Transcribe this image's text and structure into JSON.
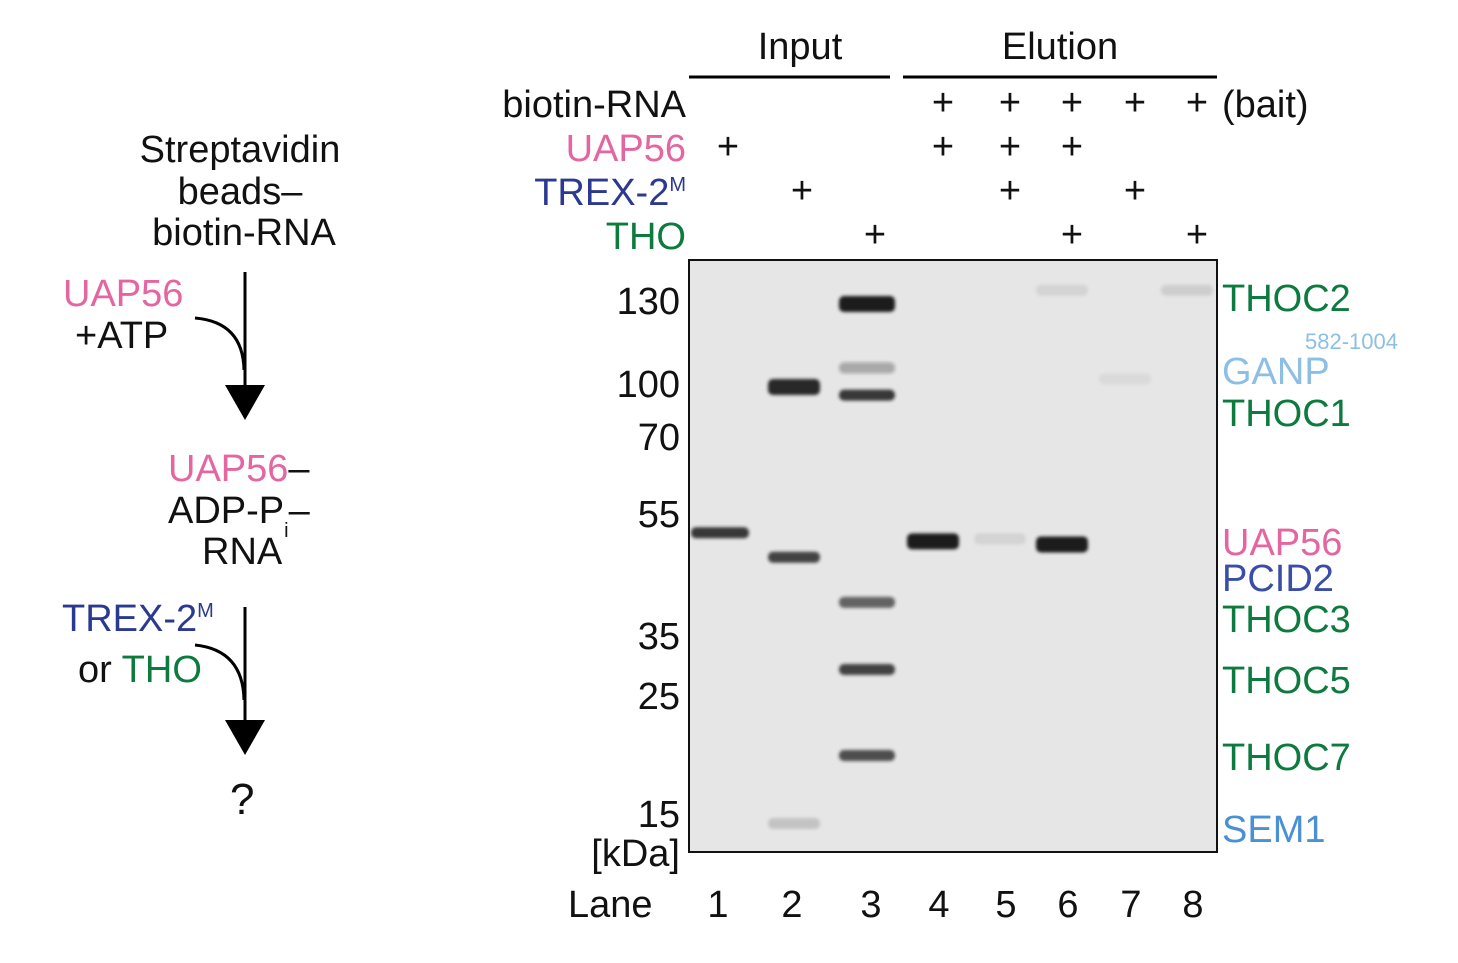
{
  "colors": {
    "uap56": "#e466a0",
    "trex2": "#2b3990",
    "tho": "#0d7a3e",
    "ganp": "#8dbfe6",
    "pcid2": "#3a4ea8",
    "sem1": "#4a90d4",
    "gel_bg": "#e6e6e6",
    "band": "#1a1a1a"
  },
  "scheme": {
    "start": [
      "Streptavidin",
      "beads–",
      "biotin-RNA"
    ],
    "step1_reagent": "UAP56",
    "step1_cofactor": "+ATP",
    "intermediate": {
      "line1_protein": "UAP56",
      "line1_dash": "–",
      "line2": "ADP-P",
      "line2_sub": "i",
      "line2_dash": "–",
      "line3": "RNA"
    },
    "step2_reagent": "TREX-2",
    "step2_sup": "M",
    "step2_or": "or ",
    "step2_alt": "THO",
    "result": "?",
    "icons": [
      "arrow-down-icon",
      "curved-arrow-icon"
    ]
  },
  "header": {
    "input_label": "Input",
    "elution_label": "Elution",
    "bait_note": "(bait)"
  },
  "rows": [
    {
      "label": "biotin-RNA",
      "sup": "",
      "color_key": "",
      "lanes": [
        "",
        "",
        "",
        "+",
        "+",
        "+",
        "+",
        "+"
      ]
    },
    {
      "label": "UAP56",
      "sup": "",
      "color_key": "uap56",
      "lanes": [
        "+",
        "",
        "",
        "+",
        "+",
        "+",
        "",
        ""
      ]
    },
    {
      "label": "TREX-2",
      "sup": "M",
      "color_key": "trex2",
      "lanes": [
        "",
        "+",
        "",
        "",
        "+",
        "",
        "+",
        ""
      ]
    },
    {
      "label": "THO",
      "sup": "",
      "color_key": "tho",
      "lanes": [
        "",
        "",
        "+",
        "",
        "",
        "+",
        "",
        "+"
      ]
    }
  ],
  "markers": {
    "values": [
      "130",
      "100",
      "70",
      "55",
      "35",
      "25",
      "15"
    ],
    "unit": "[kDa]"
  },
  "lanes": {
    "label": "Lane",
    "numbers": [
      "1",
      "2",
      "3",
      "4",
      "5",
      "6",
      "7",
      "8"
    ]
  },
  "proteins": [
    {
      "name": "THOC2",
      "sup": "",
      "color_key": "tho"
    },
    {
      "name": "GANP",
      "sup": "582-1004",
      "color_key": "ganp"
    },
    {
      "name": "THOC1",
      "sup": "",
      "color_key": "tho"
    },
    {
      "name": "UAP56",
      "sup": "",
      "color_key": "uap56"
    },
    {
      "name": "PCID2",
      "sup": "",
      "color_key": "pcid2"
    },
    {
      "name": "THOC3",
      "sup": "",
      "color_key": "tho"
    },
    {
      "name": "THOC5",
      "sup": "",
      "color_key": "tho"
    },
    {
      "name": "THOC7",
      "sup": "",
      "color_key": "tho"
    },
    {
      "name": "SEM1",
      "sup": "",
      "color_key": "sem1"
    }
  ],
  "gel_bands_kDa": [
    {
      "lane": 1,
      "kDa": 52,
      "intensity": 0.85
    },
    {
      "lane": 2,
      "kDa": 100,
      "intensity": 0.95
    },
    {
      "lane": 2,
      "kDa": 48,
      "intensity": 0.8
    },
    {
      "lane": 2,
      "kDa": 14,
      "intensity": 0.15
    },
    {
      "lane": 3,
      "kDa": 130,
      "intensity": 1.0
    },
    {
      "lane": 3,
      "kDa": 106,
      "intensity": 0.3
    },
    {
      "lane": 3,
      "kDa": 94,
      "intensity": 0.85
    },
    {
      "lane": 3,
      "kDa": 40.6,
      "intensity": 0.65
    },
    {
      "lane": 3,
      "kDa": 29.5,
      "intensity": 0.8
    },
    {
      "lane": 3,
      "kDa": 20,
      "intensity": 0.75
    },
    {
      "lane": 4,
      "kDa": 51,
      "intensity": 1.0
    },
    {
      "lane": 5,
      "kDa": 51,
      "intensity": 0.08
    },
    {
      "lane": 6,
      "kDa": 50.5,
      "intensity": 1.0
    },
    {
      "lane": 6,
      "kDa": 134,
      "intensity": 0.08
    },
    {
      "lane": 7,
      "kDa": 102,
      "intensity": 0.05
    },
    {
      "lane": 8,
      "kDa": 134,
      "intensity": 0.1
    }
  ]
}
